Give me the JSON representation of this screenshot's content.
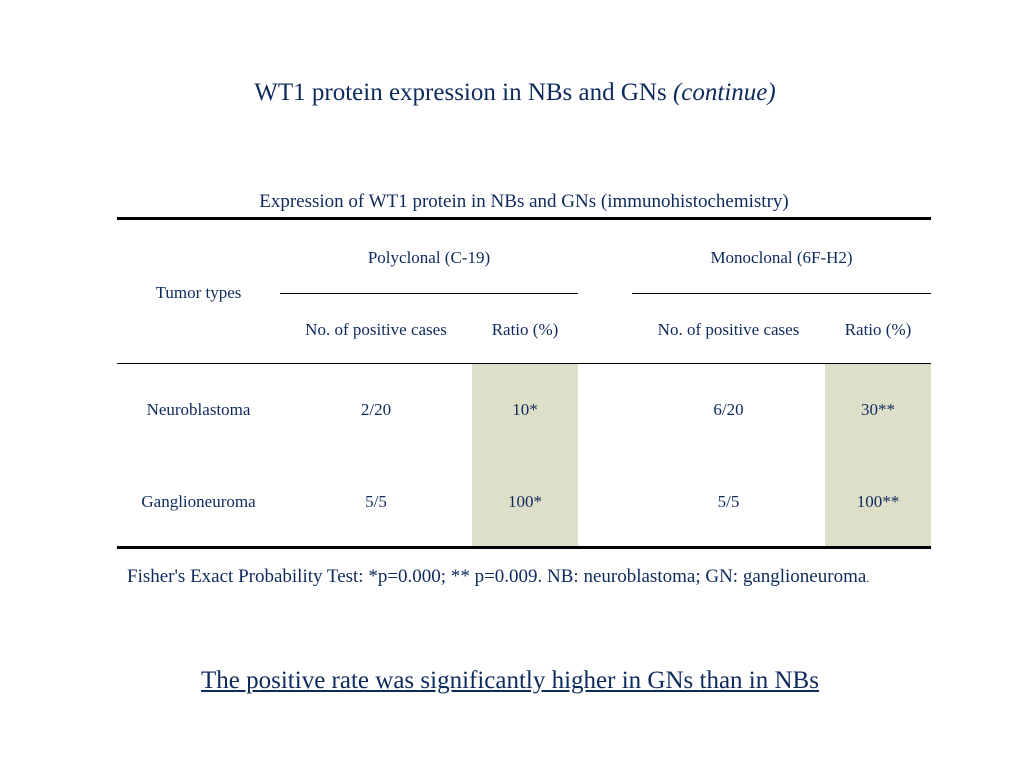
{
  "slide": {
    "title": "WT1 protein expression in  NBs and GNs",
    "title_suffix": "(continue)",
    "table_caption": "Expression of WT1 protein in NBs and GNs (immunohistochemistry)",
    "footnote": "Fisher's Exact Probability Test: *p=0.000; ** p=0.009. NB: neuroblastoma; GN: ganglioneuroma",
    "footnote_end": ".",
    "conclusion": "The positive rate was significantly higher in GNs than in NBs",
    "colors": {
      "text": "#0d2a5c",
      "shading": "#dedfc9",
      "rules": "#000000"
    }
  },
  "table": {
    "row_header": "Tumor types",
    "groups": [
      {
        "label": "Polyclonal (C-19)",
        "cols": [
          "No. of positive cases",
          "Ratio (%)"
        ]
      },
      {
        "label": "Monoclonal (6F-H2)",
        "cols": [
          "No. of positive cases",
          "Ratio (%)"
        ]
      }
    ],
    "rows": [
      {
        "type": "Neuroblastoma",
        "poly_cases": "2/20",
        "poly_ratio": "10*",
        "mono_cases": "6/20",
        "mono_ratio": "30**"
      },
      {
        "type": "Ganglioneuroma",
        "poly_cases": "5/5",
        "poly_ratio": "100*",
        "mono_cases": "5/5",
        "mono_ratio": "100**"
      }
    ]
  }
}
